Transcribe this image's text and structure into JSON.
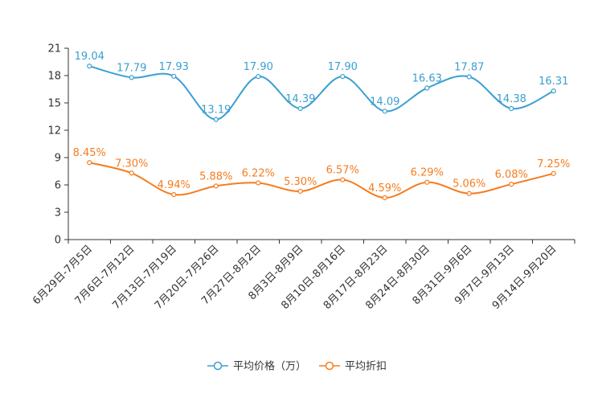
{
  "chart_data": {
    "type": "line",
    "categories": [
      "6月29日-7月5日",
      "7月6日-7月12日",
      "7月13日-7月19日",
      "7月20日-7月26日",
      "7月27日-8月2日",
      "8月3日-8月9日",
      "8月10日-8月16日",
      "8月17日-8月23日",
      "8月24日-8月30日",
      "8月31日-9月6日",
      "9月7日-9月13日",
      "9月14日-9月20日"
    ],
    "series": [
      {
        "name": "平均价格（万）",
        "color": "#3a9fd1",
        "values": [
          19.04,
          17.79,
          17.93,
          13.19,
          17.9,
          14.39,
          17.9,
          14.09,
          16.63,
          17.87,
          14.38,
          16.31
        ],
        "labels": [
          "19.04",
          "17.79",
          "17.93",
          "13.19",
          "17.90",
          "14.39",
          "17.90",
          "14.09",
          "16.63",
          "17.87",
          "14.38",
          "16.31"
        ]
      },
      {
        "name": "平均折扣",
        "color": "#f57c1f",
        "values": [
          8.45,
          7.3,
          4.94,
          5.88,
          6.22,
          5.3,
          6.57,
          4.59,
          6.29,
          5.06,
          6.08,
          7.25
        ],
        "labels": [
          "8.45%",
          "7.30%",
          "4.94%",
          "5.88%",
          "6.22%",
          "5.30%",
          "6.57%",
          "4.59%",
          "6.29%",
          "5.06%",
          "6.08%",
          "7.25%"
        ]
      }
    ],
    "ylim": [
      0,
      21
    ],
    "yticks": [
      0,
      3,
      6,
      9,
      12,
      15,
      18,
      21
    ],
    "title": "",
    "xlabel": "",
    "ylabel": "",
    "legend": "bottom-center",
    "grid": false
  }
}
